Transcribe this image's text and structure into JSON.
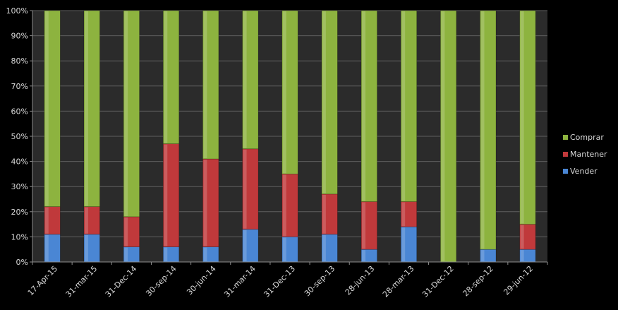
{
  "chart_data": {
    "type": "bar",
    "stacked": "percent",
    "categories": [
      "17-Apr-15",
      "31-mar-15",
      "31-Dec-14",
      "30-sep-14",
      "30-jun-14",
      "31-mar-14",
      "31-Dec-13",
      "30-sep-13",
      "28-jun-13",
      "28-mar-13",
      "31-Dec-12",
      "28-sep-12",
      "29-jun-12"
    ],
    "series": [
      {
        "name": "Vender",
        "color": "#4a86d4",
        "values": [
          11,
          11,
          6,
          6,
          6,
          13,
          10,
          11,
          5,
          14,
          0,
          5,
          5
        ]
      },
      {
        "name": "Mantener",
        "color": "#c0393b",
        "values": [
          11,
          11,
          12,
          41,
          35,
          32,
          25,
          16,
          19,
          10,
          0,
          0,
          10
        ]
      },
      {
        "name": "Comprar",
        "color": "#8db33f",
        "values": [
          78,
          78,
          82,
          53,
          59,
          55,
          65,
          73,
          76,
          76,
          100,
          95,
          85
        ]
      }
    ],
    "yticks": [
      "0%",
      "10%",
      "20%",
      "30%",
      "40%",
      "50%",
      "60%",
      "70%",
      "80%",
      "90%",
      "100%"
    ],
    "ylim": [
      0,
      100
    ],
    "grid": true,
    "legend_position": "right",
    "legend_order": [
      "Comprar",
      "Mantener",
      "Vender"
    ],
    "title": "",
    "xlabel": "",
    "ylabel": ""
  }
}
